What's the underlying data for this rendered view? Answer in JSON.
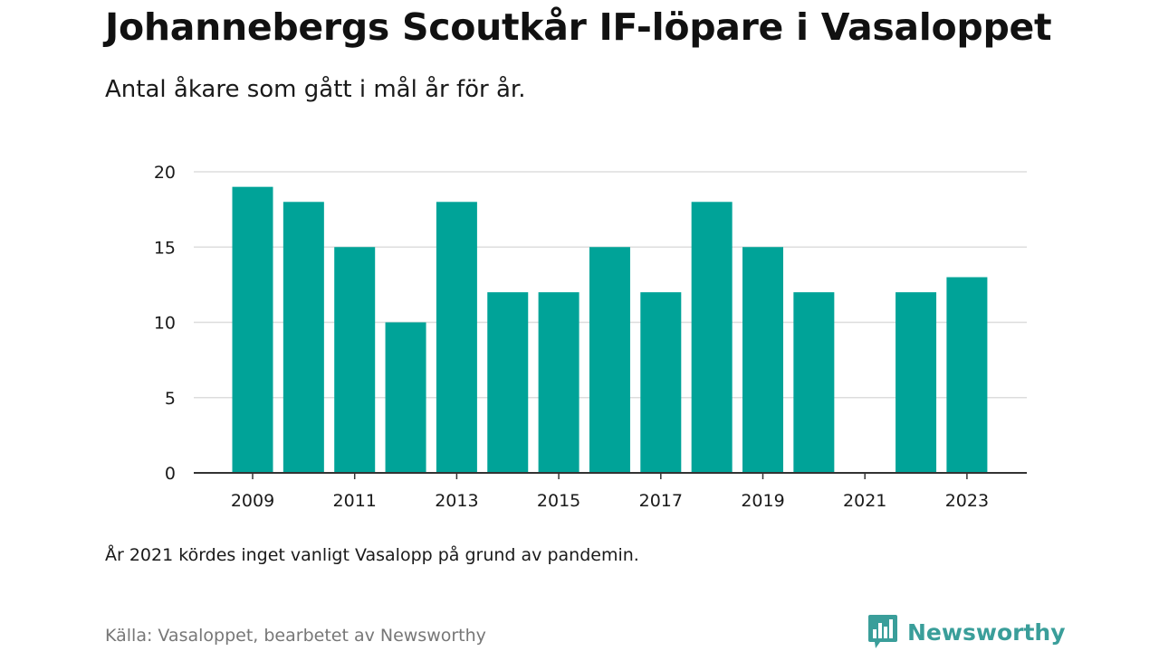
{
  "header": {
    "title": "Johannebergs Scoutkår IF-löpare i Vasaloppet",
    "subtitle": "Antal åkare som gått i mål år för år."
  },
  "footer": {
    "note": "År 2021 kördes inget vanligt Vasalopp på grund av pandemin.",
    "source": "Källa: Vasaloppet, bearbetet av Newsworthy",
    "brand_name": "Newsworthy",
    "brand_icon": "bar-chart-bubble-icon"
  },
  "colors": {
    "bar": "#00a398",
    "grid": "#dddddd",
    "axis": "#333333",
    "brand": "#3a9e9a"
  },
  "chart_data": {
    "type": "bar",
    "title": "Johannebergs Scoutkår IF-löpare i Vasaloppet",
    "subtitle": "Antal åkare som gått i mål år för år.",
    "xlabel": "",
    "ylabel": "",
    "categories": [
      "2009",
      "2010",
      "2011",
      "2012",
      "2013",
      "2014",
      "2015",
      "2016",
      "2017",
      "2018",
      "2019",
      "2020",
      "2021",
      "2022",
      "2023"
    ],
    "values": [
      19,
      18,
      15,
      10,
      18,
      12,
      12,
      15,
      12,
      18,
      15,
      12,
      null,
      12,
      13
    ],
    "x_tick_labels": [
      "2009",
      "2011",
      "2013",
      "2015",
      "2017",
      "2019",
      "2021",
      "2023"
    ],
    "y_ticks": [
      0,
      5,
      10,
      15,
      20
    ],
    "ylim": [
      0,
      20
    ],
    "grid": true,
    "legend": "none"
  }
}
